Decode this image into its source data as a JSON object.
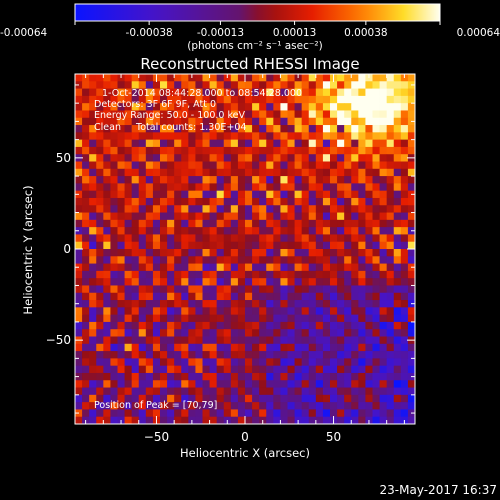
{
  "colorbar": {
    "tick_labels": [
      "-0.00064",
      "-0.00038",
      "-0.00013",
      "0.00013",
      "0.00038",
      "0.00064"
    ],
    "unit_label": "(photons cm⁻² s⁻¹ asec⁻²)"
  },
  "annotations": {
    "time_range": "1-Oct-2014 08:44:28.000 to 08:54:28.000",
    "detectors": "Detectors: 3F 6F 9F, Att 0",
    "energy_range": "Energy Range: 50.0 - 100.0 keV",
    "clean_counts": "Clean     Total counts: 1.30E+04",
    "peak_position": "Position of Peak = [70,79]"
  },
  "footer": {
    "timestamp": "23-May-2017 16:37"
  },
  "chart_data": {
    "type": "heatmap",
    "title": "Reconstructed RHESSI Image",
    "xlabel": "Heliocentric X (arcsec)",
    "ylabel": "Heliocentric Y (arcsec)",
    "xlim": [
      -96,
      96
    ],
    "ylim": [
      -96,
      96
    ],
    "x_ticks": [
      -50,
      0,
      50
    ],
    "y_ticks": [
      -50,
      0,
      50
    ],
    "x_tick_labels": [
      "−50",
      "0",
      "50"
    ],
    "y_tick_labels": [
      "−50",
      "0",
      "50"
    ],
    "colorbar_range": [
      -0.00064,
      0.00064
    ],
    "colormap": "rhessi red-temperature (blue-purple-red-yellow-white)",
    "peak": [
      70,
      79
    ],
    "grid_size": [
      48,
      48
    ]
  }
}
